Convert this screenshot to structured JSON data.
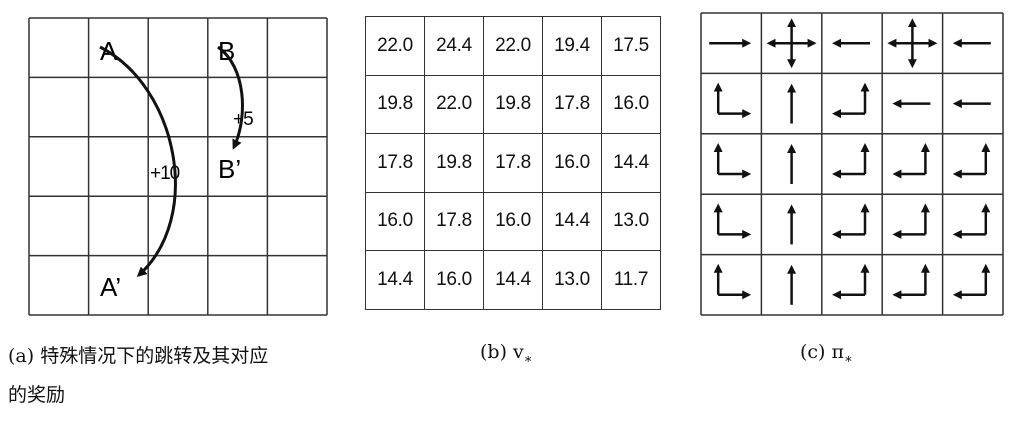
{
  "panel_a": {
    "labels": {
      "A": "A",
      "A_prime": "A’",
      "B": "B",
      "B_prime": "B’"
    },
    "rewards": {
      "A_to_A_prime": "+10",
      "B_to_B_prime": "+5"
    },
    "caption_line1": "(a) 特殊情况下的跳转及其对应",
    "caption_line2": "的奖励"
  },
  "panel_b": {
    "values": [
      [
        "22.0",
        "24.4",
        "22.0",
        "19.4",
        "17.5"
      ],
      [
        "19.8",
        "22.0",
        "19.8",
        "17.8",
        "16.0"
      ],
      [
        "17.8",
        "19.8",
        "17.8",
        "16.0",
        "14.4"
      ],
      [
        "16.0",
        "17.8",
        "16.0",
        "14.4",
        "13.0"
      ],
      [
        "14.4",
        "16.0",
        "14.4",
        "13.0",
        "11.7"
      ]
    ],
    "caption": "(b) v",
    "caption_sub": "∗"
  },
  "panel_c": {
    "policy": [
      [
        "right",
        "all",
        "left",
        "all",
        "left"
      ],
      [
        "up-right",
        "up",
        "up-left",
        "left",
        "left"
      ],
      [
        "up-right",
        "up",
        "up-left",
        "up-left",
        "up-left"
      ],
      [
        "up-right",
        "up",
        "up-left",
        "up-left",
        "up-left"
      ],
      [
        "up-right",
        "up",
        "up-left",
        "up-left",
        "up-left"
      ]
    ],
    "caption": "(c) π",
    "caption_sub": "∗"
  }
}
